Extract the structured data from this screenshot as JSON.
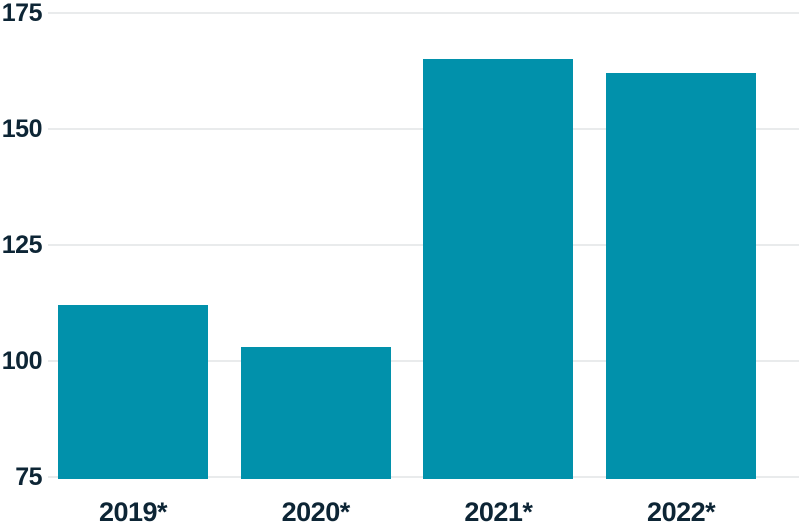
{
  "chart_data": {
    "type": "bar",
    "categories": [
      "2019*",
      "2020*",
      "2021*",
      "2022*"
    ],
    "values": [
      112,
      103,
      165,
      162
    ],
    "ylim": [
      75,
      175
    ],
    "yticks": [
      75,
      100,
      125,
      150,
      175
    ],
    "grid": true,
    "legend": false,
    "colors": {
      "bar": "#0191ab",
      "tick_label": "#0d2535",
      "gridline": "#e9ebec",
      "background": "#ffffff"
    }
  }
}
